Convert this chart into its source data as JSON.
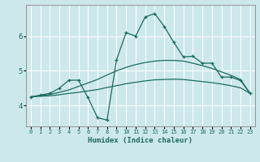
{
  "background_color": "#cde8ec",
  "grid_color": "#ffffff",
  "line_color": "#1a6b5e",
  "x_label": "Humidex (Indice chaleur)",
  "x_ticks": [
    0,
    1,
    2,
    3,
    4,
    5,
    6,
    7,
    8,
    9,
    10,
    11,
    12,
    13,
    14,
    15,
    16,
    17,
    18,
    19,
    20,
    21,
    22,
    23
  ],
  "y_ticks": [
    4,
    5,
    6
  ],
  "ylim": [
    3.4,
    6.9
  ],
  "xlim": [
    -0.5,
    23.5
  ],
  "curve_jagged_x": [
    0,
    1,
    2,
    3,
    4,
    5,
    6,
    7,
    8,
    9,
    10,
    11,
    12,
    13,
    14,
    15,
    16,
    17,
    18,
    19,
    20,
    21,
    22,
    23
  ],
  "curve_jagged_y": [
    4.25,
    4.3,
    4.35,
    4.5,
    4.73,
    4.73,
    4.23,
    3.65,
    3.58,
    5.32,
    6.1,
    6.0,
    6.55,
    6.65,
    6.28,
    5.82,
    5.4,
    5.42,
    5.22,
    5.22,
    4.82,
    4.82,
    4.72,
    4.35
  ],
  "curve_mid_x": [
    0,
    1,
    2,
    3,
    4,
    5,
    6,
    7,
    8,
    9,
    10,
    11,
    12,
    13,
    14,
    15,
    16,
    17,
    18,
    19,
    20,
    21,
    22,
    23
  ],
  "curve_mid_y": [
    4.25,
    4.28,
    4.32,
    4.38,
    4.45,
    4.55,
    4.65,
    4.75,
    4.88,
    5.0,
    5.1,
    5.18,
    5.24,
    5.28,
    5.3,
    5.3,
    5.28,
    5.22,
    5.15,
    5.07,
    4.97,
    4.87,
    4.75,
    4.35
  ],
  "curve_low_x": [
    0,
    1,
    2,
    3,
    4,
    5,
    6,
    7,
    8,
    9,
    10,
    11,
    12,
    13,
    14,
    15,
    16,
    17,
    18,
    19,
    20,
    21,
    22,
    23
  ],
  "curve_low_y": [
    4.25,
    4.27,
    4.28,
    4.31,
    4.35,
    4.38,
    4.42,
    4.46,
    4.52,
    4.57,
    4.63,
    4.67,
    4.71,
    4.74,
    4.75,
    4.76,
    4.75,
    4.72,
    4.69,
    4.66,
    4.62,
    4.57,
    4.51,
    4.35
  ],
  "marker_size": 2.5,
  "line_width": 0.9
}
